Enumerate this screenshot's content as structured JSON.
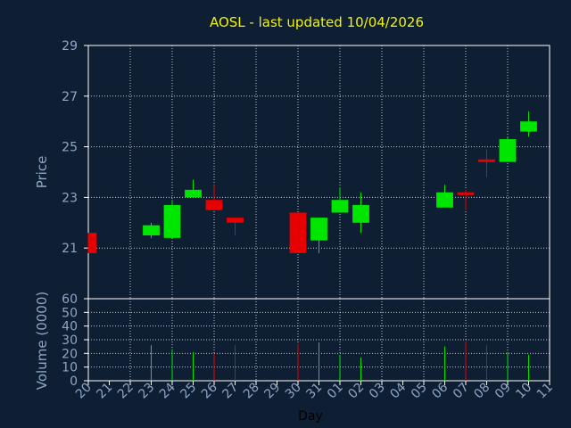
{
  "colors": {
    "background": "#0f1f33",
    "axes": "#ffffff",
    "grid": "#ffffff",
    "text": "#8ea6c6",
    "title": "#f2f20c",
    "up": "#00e600",
    "down": "#e60000"
  },
  "chart_data": {
    "type": "candlestick",
    "title": "AOSL - last updated 10/04/2026",
    "xlabel": "Day",
    "price_axis": {
      "label": "Price",
      "ylim": [
        19,
        29
      ],
      "ticks": [
        21,
        23,
        25,
        27,
        29
      ]
    },
    "volume_axis": {
      "label": "Volume (0000)",
      "ylim": [
        0,
        60
      ],
      "ticks": [
        0,
        10,
        20,
        30,
        40,
        50,
        60
      ]
    },
    "x_ticks": [
      "20",
      "21",
      "22",
      "23",
      "24",
      "25",
      "26",
      "27",
      "28",
      "29",
      "30",
      "31",
      "01",
      "02",
      "03",
      "04",
      "05",
      "06",
      "07",
      "08",
      "09",
      "10",
      "11"
    ],
    "grid": true,
    "candles": [
      {
        "day": "20",
        "open": 21.6,
        "close": 20.8,
        "high": 21.6,
        "low": 20.8,
        "volume": 0
      },
      {
        "day": "23",
        "open": 21.5,
        "close": 21.9,
        "high": 22.0,
        "low": 21.4,
        "volume": 26
      },
      {
        "day": "24",
        "open": 21.4,
        "close": 22.7,
        "high": 22.9,
        "low": 21.4,
        "volume": 23
      },
      {
        "day": "25",
        "open": 23.0,
        "close": 23.3,
        "high": 23.7,
        "low": 23.0,
        "volume": 21
      },
      {
        "day": "26",
        "open": 22.9,
        "close": 22.5,
        "high": 23.5,
        "low": 22.5,
        "volume": 20
      },
      {
        "day": "27",
        "open": 22.2,
        "close": 22.0,
        "high": 22.2,
        "low": 21.5,
        "volume": 26
      },
      {
        "day": "30",
        "open": 22.4,
        "close": 20.8,
        "high": 22.4,
        "low": 20.8,
        "volume": 27
      },
      {
        "day": "31",
        "open": 21.3,
        "close": 22.2,
        "high": 22.2,
        "low": 20.8,
        "volume": 28
      },
      {
        "day": "01",
        "open": 22.4,
        "close": 22.9,
        "high": 23.4,
        "low": 22.4,
        "volume": 19
      },
      {
        "day": "02",
        "open": 22.0,
        "close": 22.7,
        "high": 23.2,
        "low": 21.6,
        "volume": 17
      },
      {
        "day": "06",
        "open": 22.6,
        "close": 23.2,
        "high": 23.5,
        "low": 22.6,
        "volume": 25
      },
      {
        "day": "07",
        "open": 23.2,
        "close": 23.1,
        "high": 23.3,
        "low": 22.5,
        "volume": 29
      },
      {
        "day": "08",
        "open": 24.5,
        "close": 24.4,
        "high": 24.9,
        "low": 23.8,
        "volume": 26
      },
      {
        "day": "09",
        "open": 24.4,
        "close": 25.3,
        "high": 25.4,
        "low": 24.4,
        "volume": 21
      },
      {
        "day": "10",
        "open": 25.6,
        "close": 26.0,
        "high": 26.4,
        "low": 25.4,
        "volume": 19
      }
    ]
  }
}
